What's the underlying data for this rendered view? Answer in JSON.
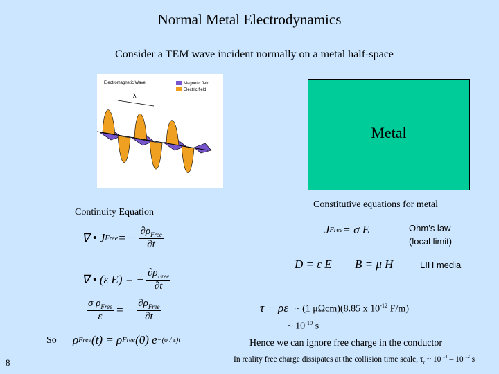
{
  "title": "Normal Metal Electrodynamics",
  "subtitle": "Consider a TEM wave incident normally on a metal half-space",
  "wave_figure": {
    "title": "Electromagnetic Wave",
    "legend": [
      "Magnetic field",
      "Electric field"
    ],
    "wavelength": "λ"
  },
  "metal_label": "Metal",
  "continuity": {
    "heading": "Continuity Equation",
    "equations": [
      [
        {
          "text": "∇ • J",
          "sub": "Free"
        },
        {
          "text": " = −"
        },
        {
          "num": [
            {
              "text": "∂ρ",
              "sub": "Free"
            }
          ],
          "den": [
            {
              "text": "∂t"
            }
          ]
        }
      ],
      [
        {
          "text": "∇ • (ε E) = −"
        },
        {
          "num": [
            {
              "text": "∂ρ",
              "sub": "Free"
            }
          ],
          "den": [
            {
              "text": "∂t"
            }
          ]
        }
      ],
      [
        {
          "num": [
            {
              "text": "σ ρ",
              "sub": "Free"
            }
          ],
          "den": [
            {
              "text": "ε"
            }
          ]
        },
        {
          "text": " = −"
        },
        {
          "num": [
            {
              "text": "∂ρ",
              "sub": "Free"
            }
          ],
          "den": [
            {
              "text": "∂t"
            }
          ]
        }
      ]
    ]
  },
  "solution": {
    "label": "So",
    "equation": [
      {
        "text": "ρ",
        "sub": "Free"
      },
      {
        "text": "(t) = ρ",
        "sub": "Free"
      },
      {
        "text": "(0) e",
        "sup": "−(σ / ε)t"
      }
    ]
  },
  "constitutive": {
    "heading": "Constitutive equations for metal",
    "ohm_equation": [
      {
        "text": "J",
        "sub": "Free"
      },
      {
        "text": " = σ E"
      }
    ],
    "ohm_label": "Ohm’s law",
    "ohm_note": "(local limit)",
    "lih_equations": [
      [
        {
          "text": "D = ε E"
        }
      ],
      [
        {
          "text": "B = μ H"
        }
      ]
    ],
    "lih_label": "LIH media"
  },
  "relaxation": {
    "equation": [
      {
        "text": "τ − ρε"
      }
    ],
    "estimate": [
      {
        "text": "~ (1 μΩcm)(8.85 x 10",
        "sup": "-12"
      },
      {
        "text": " F/m)"
      }
    ],
    "result": [
      {
        "text": "~ 10",
        "sup": "-19"
      },
      {
        "text": " s"
      }
    ],
    "conclusion": "Hence we can ignore free charge in the conductor",
    "reality": [
      {
        "text": "In reality free charge dissipates at the collision time scale, τ",
        "sub": "r"
      },
      {
        "text": " ~ 10",
        "sup": "-14"
      },
      {
        "text": " – 10",
        "sup": "-12"
      },
      {
        "text": " s"
      }
    ]
  },
  "page_number": "8"
}
